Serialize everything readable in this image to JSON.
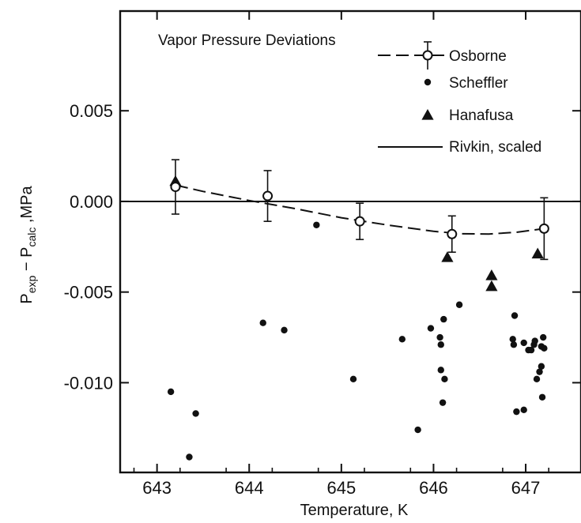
{
  "chart_data": {
    "type": "scatter",
    "title": "Vapor Pressure Deviations",
    "xlabel": "Temperature, K",
    "ylabel": {
      "p": "P",
      "exp": "exp",
      "minus": " − P",
      "calc": "calc",
      "unit": " ,MPa"
    },
    "xlim": [
      642.6,
      647.6
    ],
    "ylim": [
      -0.01495,
      0.0105
    ],
    "x_ticks": [
      643,
      644,
      645,
      646,
      647
    ],
    "x_tick_labels": [
      "643",
      "644",
      "645",
      "646",
      "647"
    ],
    "y_ticks": [
      0.005,
      0.0,
      -0.005,
      -0.01
    ],
    "y_tick_labels": [
      "0.005",
      "0.000",
      "-0.005",
      "-0.010"
    ],
    "reference_line_y": 0.0,
    "legend_position": "top-right",
    "series": [
      {
        "name": "Osborne",
        "marker": "open-circle",
        "points": [
          {
            "x": 643.2,
            "y": 0.0008,
            "err": 0.0015
          },
          {
            "x": 644.2,
            "y": 0.0003,
            "err": 0.0014
          },
          {
            "x": 645.2,
            "y": -0.0011,
            "err": 0.001
          },
          {
            "x": 646.2,
            "y": -0.0018,
            "err": 0.001
          },
          {
            "x": 647.2,
            "y": -0.0015,
            "err": 0.0017
          }
        ],
        "fit_curve": {
          "style": "dashed",
          "x": [
            643.2,
            643.5,
            644.0,
            644.5,
            645.0,
            645.5,
            646.0,
            646.3,
            646.6,
            646.9,
            647.2
          ],
          "y": [
            0.0009,
            0.00055,
            5e-05,
            -0.0004,
            -0.0009,
            -0.0013,
            -0.00165,
            -0.00178,
            -0.0018,
            -0.0017,
            -0.0015
          ]
        }
      },
      {
        "name": "Scheffler",
        "marker": "filled-dot",
        "points": [
          {
            "x": 643.15,
            "y": -0.0105
          },
          {
            "x": 643.35,
            "y": -0.0141
          },
          {
            "x": 643.42,
            "y": -0.0117
          },
          {
            "x": 644.15,
            "y": -0.0067
          },
          {
            "x": 644.38,
            "y": -0.0071
          },
          {
            "x": 644.73,
            "y": -0.0013
          },
          {
            "x": 645.13,
            "y": -0.0098
          },
          {
            "x": 645.66,
            "y": -0.0076
          },
          {
            "x": 645.83,
            "y": -0.0126
          },
          {
            "x": 645.97,
            "y": -0.007
          },
          {
            "x": 646.07,
            "y": -0.0075
          },
          {
            "x": 646.08,
            "y": -0.0079
          },
          {
            "x": 646.08,
            "y": -0.0093
          },
          {
            "x": 646.11,
            "y": -0.0065
          },
          {
            "x": 646.12,
            "y": -0.0098
          },
          {
            "x": 646.1,
            "y": -0.0111
          },
          {
            "x": 646.28,
            "y": -0.0057
          },
          {
            "x": 646.88,
            "y": -0.0063
          },
          {
            "x": 646.86,
            "y": -0.0076
          },
          {
            "x": 646.87,
            "y": -0.0079
          },
          {
            "x": 646.9,
            "y": -0.0116
          },
          {
            "x": 646.98,
            "y": -0.0115
          },
          {
            "x": 646.98,
            "y": -0.0078
          },
          {
            "x": 647.03,
            "y": -0.0082
          },
          {
            "x": 647.06,
            "y": -0.0082
          },
          {
            "x": 647.09,
            "y": -0.0079
          },
          {
            "x": 647.1,
            "y": -0.0077
          },
          {
            "x": 647.12,
            "y": -0.0098
          },
          {
            "x": 647.15,
            "y": -0.0094
          },
          {
            "x": 647.17,
            "y": -0.0091
          },
          {
            "x": 647.17,
            "y": -0.008
          },
          {
            "x": 647.19,
            "y": -0.0075
          },
          {
            "x": 647.2,
            "y": -0.0081
          },
          {
            "x": 647.18,
            "y": -0.0108
          }
        ]
      },
      {
        "name": "Hanafusa",
        "marker": "filled-triangle",
        "points": [
          {
            "x": 643.2,
            "y": 0.0011
          },
          {
            "x": 646.15,
            "y": -0.0031
          },
          {
            "x": 646.63,
            "y": -0.0041
          },
          {
            "x": 646.63,
            "y": -0.0047
          },
          {
            "x": 647.13,
            "y": -0.0029
          }
        ]
      },
      {
        "name": "Rivkin, scaled",
        "marker": "solid-line",
        "points": [
          {
            "x": 642.6,
            "y": 0.0
          },
          {
            "x": 647.6,
            "y": 0.0
          }
        ]
      }
    ]
  }
}
